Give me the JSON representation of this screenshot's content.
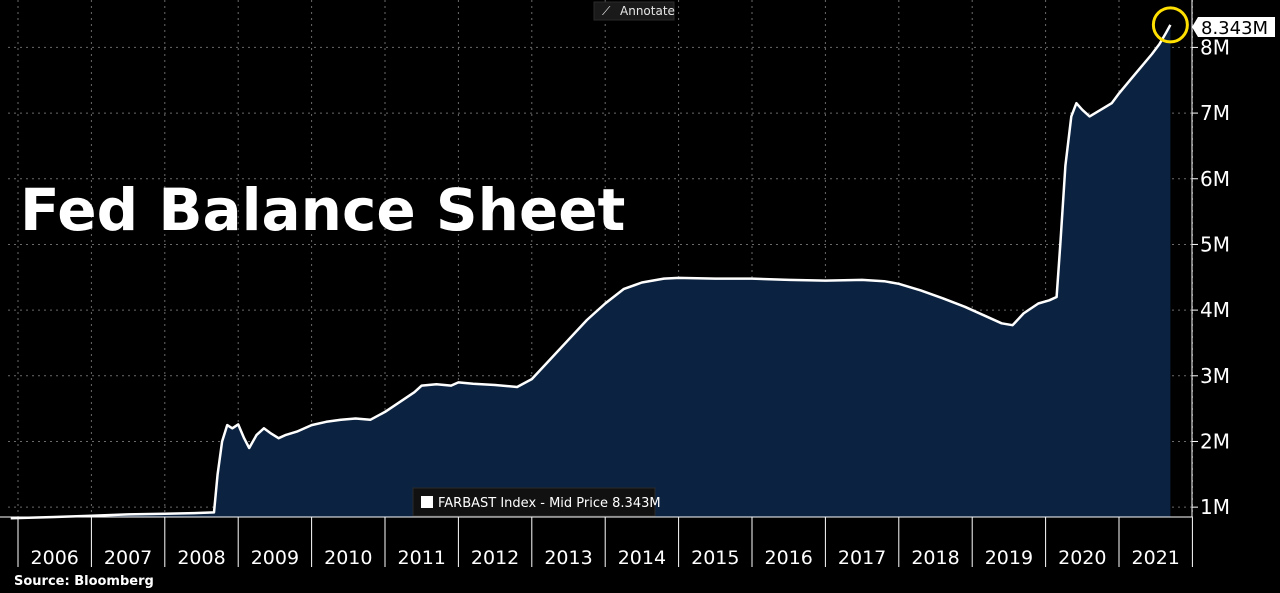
{
  "chart_data": {
    "type": "area",
    "title": "Fed Balance Sheet",
    "source": "Source: Bloomberg",
    "ylim": [
      0.85,
      8.6
    ],
    "y_unit": "M",
    "yticks": [
      "1M",
      "2M",
      "3M",
      "4M",
      "5M",
      "6M",
      "7M",
      "8M"
    ],
    "xticks": [
      "2006",
      "2007",
      "2008",
      "2009",
      "2010",
      "2011",
      "2012",
      "2013",
      "2014",
      "2015",
      "2016",
      "2017",
      "2018",
      "2019",
      "2020",
      "2021"
    ],
    "grid": true,
    "legend": {
      "position": "bottom-center",
      "label": "FARBAST Index - Mid Price 8.343M"
    },
    "annotate_button": "Annotate",
    "last_value_label": "8.343M",
    "series": [
      {
        "color": "#ffffff",
        "fill": "#0b2340",
        "points": [
          [
            2005.9,
            0.83
          ],
          [
            2006.5,
            0.85
          ],
          [
            2007.0,
            0.87
          ],
          [
            2007.5,
            0.89
          ],
          [
            2008.0,
            0.9
          ],
          [
            2008.4,
            0.91
          ],
          [
            2008.67,
            0.92
          ],
          [
            2008.72,
            1.5
          ],
          [
            2008.78,
            2.0
          ],
          [
            2008.85,
            2.25
          ],
          [
            2008.92,
            2.2
          ],
          [
            2009.0,
            2.26
          ],
          [
            2009.08,
            2.05
          ],
          [
            2009.15,
            1.9
          ],
          [
            2009.25,
            2.1
          ],
          [
            2009.35,
            2.2
          ],
          [
            2009.45,
            2.12
          ],
          [
            2009.55,
            2.05
          ],
          [
            2009.65,
            2.1
          ],
          [
            2009.8,
            2.15
          ],
          [
            2010.0,
            2.25
          ],
          [
            2010.2,
            2.3
          ],
          [
            2010.4,
            2.33
          ],
          [
            2010.6,
            2.35
          ],
          [
            2010.8,
            2.33
          ],
          [
            2011.0,
            2.45
          ],
          [
            2011.2,
            2.6
          ],
          [
            2011.4,
            2.75
          ],
          [
            2011.5,
            2.85
          ],
          [
            2011.7,
            2.87
          ],
          [
            2011.9,
            2.85
          ],
          [
            2012.0,
            2.9
          ],
          [
            2012.2,
            2.88
          ],
          [
            2012.5,
            2.86
          ],
          [
            2012.8,
            2.83
          ],
          [
            2013.0,
            2.95
          ],
          [
            2013.25,
            3.25
          ],
          [
            2013.5,
            3.55
          ],
          [
            2013.75,
            3.85
          ],
          [
            2014.0,
            4.1
          ],
          [
            2014.25,
            4.32
          ],
          [
            2014.5,
            4.42
          ],
          [
            2014.8,
            4.48
          ],
          [
            2015.0,
            4.49
          ],
          [
            2015.5,
            4.48
          ],
          [
            2016.0,
            4.48
          ],
          [
            2016.5,
            4.46
          ],
          [
            2017.0,
            4.45
          ],
          [
            2017.5,
            4.46
          ],
          [
            2017.8,
            4.44
          ],
          [
            2018.0,
            4.4
          ],
          [
            2018.3,
            4.3
          ],
          [
            2018.6,
            4.18
          ],
          [
            2018.9,
            4.05
          ],
          [
            2019.2,
            3.9
          ],
          [
            2019.4,
            3.8
          ],
          [
            2019.55,
            3.77
          ],
          [
            2019.7,
            3.95
          ],
          [
            2019.9,
            4.1
          ],
          [
            2020.05,
            4.15
          ],
          [
            2020.15,
            4.2
          ],
          [
            2020.2,
            5.0
          ],
          [
            2020.27,
            6.2
          ],
          [
            2020.35,
            6.95
          ],
          [
            2020.42,
            7.15
          ],
          [
            2020.5,
            7.05
          ],
          [
            2020.6,
            6.95
          ],
          [
            2020.75,
            7.05
          ],
          [
            2020.9,
            7.15
          ],
          [
            2021.0,
            7.3
          ],
          [
            2021.15,
            7.5
          ],
          [
            2021.3,
            7.7
          ],
          [
            2021.45,
            7.9
          ],
          [
            2021.55,
            8.05
          ],
          [
            2021.63,
            8.2
          ],
          [
            2021.7,
            8.343
          ]
        ]
      }
    ]
  }
}
